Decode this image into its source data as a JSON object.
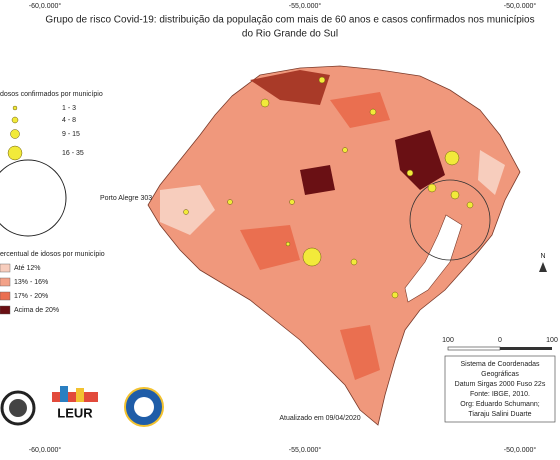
{
  "title": {
    "line1": "Grupo de risco Covid-19: distribuição da população com mais de 60 anos e casos confirmados nos municípios",
    "line2": "do Rio Grande do Sul"
  },
  "graticule": {
    "top": [
      "-60,0.000°",
      "-55,0.000°",
      "-50,0.000°"
    ],
    "bottom": [
      "-60,0.000°",
      "-55,0.000°",
      "-50,0.000°"
    ]
  },
  "legend_cases": {
    "title": "dosos confirmados por município",
    "items": [
      "1 - 3",
      "4 - 8",
      "9 - 15",
      "16 - 35"
    ],
    "porto_alegre": "Porto Alegre 303"
  },
  "legend_percent": {
    "title": "ercentual de idosos por município",
    "items": [
      {
        "label": "Até 12%",
        "color": "#f7cdbd"
      },
      {
        "label": "13% - 16%",
        "color": "#f3a288"
      },
      {
        "label": "17% - 20%",
        "color": "#ea6f50"
      },
      {
        "label": "Acima de 20%",
        "color": "#6a1014"
      }
    ]
  },
  "scale": [
    "100",
    "0",
    "100"
  ],
  "north": "N",
  "info": [
    "Sistema de Coordenadas",
    "Geográficas",
    "Datum Sirgas 2000 Fuso 22s",
    "Fonte: IBGE, 2010.",
    "Org: Eduardo Schumann;",
    "Tiaraju Salini Duarte"
  ],
  "updated": "Atualizado em 09/04/2020",
  "logo": "LEUR"
}
